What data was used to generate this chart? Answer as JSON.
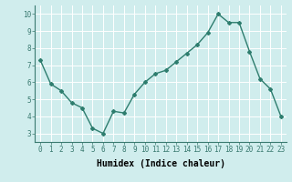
{
  "x": [
    0,
    1,
    2,
    3,
    4,
    5,
    6,
    7,
    8,
    9,
    10,
    11,
    12,
    13,
    14,
    15,
    16,
    17,
    18,
    19,
    20,
    21,
    22,
    23
  ],
  "y": [
    7.3,
    5.9,
    5.5,
    4.8,
    4.5,
    3.3,
    3.0,
    4.3,
    4.2,
    5.3,
    6.0,
    6.5,
    6.7,
    7.2,
    7.7,
    8.2,
    8.9,
    10.0,
    9.5,
    9.5,
    7.8,
    6.2,
    5.6,
    4.0
  ],
  "line_color": "#2e7d6e",
  "marker": "D",
  "marker_size": 2,
  "bg_color": "#d0eded",
  "grid_color": "#ffffff",
  "xlabel": "Humidex (Indice chaleur)",
  "xlim": [
    -0.5,
    23.5
  ],
  "ylim": [
    2.5,
    10.5
  ],
  "yticks": [
    3,
    4,
    5,
    6,
    7,
    8,
    9,
    10
  ],
  "xticks": [
    0,
    1,
    2,
    3,
    4,
    5,
    6,
    7,
    8,
    9,
    10,
    11,
    12,
    13,
    14,
    15,
    16,
    17,
    18,
    19,
    20,
    21,
    22,
    23
  ],
  "tick_fontsize": 5.5,
  "xlabel_fontsize": 7,
  "line_width": 1.0
}
